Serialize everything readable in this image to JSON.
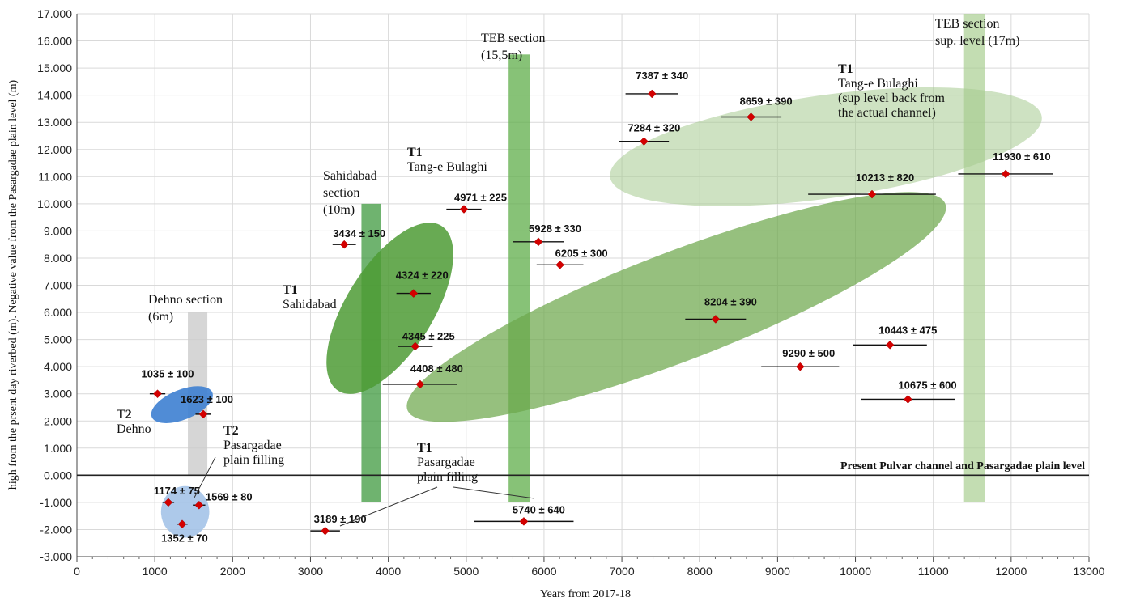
{
  "chart_data": {
    "type": "scatter",
    "xlabel": "Years from 2017-18",
    "ylabel": "high from the prsent day riverbed (m). Negative value from the Pasargadae plain level (m)",
    "xlim": [
      0,
      13000
    ],
    "ylim": [
      -3,
      17
    ],
    "x_ticks": [
      "0",
      "1000",
      "2000",
      "3000",
      "4000",
      "5000",
      "6000",
      "7000",
      "8000",
      "9000",
      "10000",
      "11000",
      "12000",
      "13000"
    ],
    "y_ticks": [
      "-3.000",
      "-2.000",
      "-1.000",
      "0.000",
      "1.000",
      "2.000",
      "3.000",
      "4.000",
      "5.000",
      "6.000",
      "7.000",
      "8.000",
      "9.000",
      "10.000",
      "11.000",
      "12.000",
      "13.000",
      "14.000",
      "15.000",
      "16.000",
      "17.000"
    ],
    "grid": true,
    "baseline": {
      "y": 0,
      "label": "Present Pulvar channel and Pasargadae plain level"
    },
    "sections": [
      {
        "x_center": 1550,
        "width": 250,
        "top": 6,
        "bottom": 0,
        "color": "#cccccc",
        "opacity": 0.8,
        "label_lines": [
          "Dehno section",
          "(6m)"
        ]
      },
      {
        "x_center": 3780,
        "width": 250,
        "top": 10,
        "bottom": -1,
        "color": "#3f9a3f",
        "opacity": 0.75,
        "label_lines": [
          "Sahidabad",
          "section",
          "(10m)"
        ]
      },
      {
        "x_center": 5680,
        "width": 270,
        "top": 15.5,
        "bottom": -1,
        "color": "#5fae4a",
        "opacity": 0.75,
        "label_lines": [
          "TEB section",
          "(15,5m)"
        ]
      },
      {
        "x_center": 11530,
        "width": 270,
        "top": 17,
        "bottom": -1,
        "color": "#a9cf92",
        "opacity": 0.7,
        "label_lines": [
          "TEB section",
          "sup. level (17m)"
        ]
      }
    ],
    "groups": [
      {
        "cx": 1350,
        "cy": 2.6,
        "rx": 420,
        "ry": 0.55,
        "rotation": 22,
        "fill": "#3d7fd1",
        "opacity": 0.9,
        "title": "T2",
        "subtitle_lines": [
          "Dehno"
        ]
      },
      {
        "cx": 1390,
        "cy": -1.35,
        "rx": 310,
        "ry": 0.95,
        "rotation": 0,
        "fill": "#9fbfe6",
        "opacity": 0.85,
        "title": "T2",
        "subtitle_lines": [
          "Pasargadae",
          "plain filling"
        ]
      },
      {
        "cx": 4020,
        "cy": 6.15,
        "rx": 1250,
        "ry": 1.6,
        "rotation": 58,
        "fill": "#4e9b35",
        "opacity": 0.85,
        "title": "T1",
        "subtitle_lines": [
          "Sahidabad"
        ]
      },
      {
        "cx": 7700,
        "cy": 6.2,
        "rx": 3700,
        "ry": 2.0,
        "rotation": 21,
        "fill": "#6ea74c",
        "opacity": 0.72,
        "title": "T1",
        "subtitle_lines": [
          "Tang-e Bulaghi"
        ]
      },
      {
        "cx": 9620,
        "cy": 12.1,
        "rx": 2800,
        "ry": 1.9,
        "rotation": 8,
        "fill": "#a6cb8f",
        "opacity": 0.55,
        "title": "T1",
        "subtitle_lines": [
          "Tang-e Bulaghi",
          "(sup level back from",
          "the actual channel)"
        ]
      },
      {
        "title": "T1",
        "subtitle_lines": [
          "Pasargadae",
          "plain filling"
        ]
      }
    ],
    "series": [
      {
        "points": [
          {
            "x": 1035,
            "y": 3.0,
            "err": 100,
            "label": "1035 ± 100"
          },
          {
            "x": 1623,
            "y": 2.25,
            "err": 100,
            "label": "1623 ± 100"
          },
          {
            "x": 1174,
            "y": -1.0,
            "err": 75,
            "label": "1174 ± 75"
          },
          {
            "x": 1569,
            "y": -1.1,
            "err": 80,
            "label": "1569 ± 80"
          },
          {
            "x": 1352,
            "y": -1.8,
            "err": 70,
            "label": "1352 ± 70"
          },
          {
            "x": 3189,
            "y": -2.05,
            "err": 190,
            "label": "3189 ± 190"
          },
          {
            "x": 5740,
            "y": -1.7,
            "err": 640,
            "label": "5740 ± 640"
          },
          {
            "x": 3434,
            "y": 8.5,
            "err": 150,
            "label": "3434 ± 150"
          },
          {
            "x": 4324,
            "y": 6.7,
            "err": 220,
            "label": "4324 ± 220"
          },
          {
            "x": 4345,
            "y": 4.75,
            "err": 225,
            "label": "4345 ± 225"
          },
          {
            "x": 4408,
            "y": 3.35,
            "err": 480,
            "label": "4408 ± 480"
          },
          {
            "x": 4971,
            "y": 9.8,
            "err": 225,
            "label": "4971 ± 225"
          },
          {
            "x": 5928,
            "y": 8.6,
            "err": 330,
            "label": "5928 ± 330"
          },
          {
            "x": 6205,
            "y": 7.75,
            "err": 300,
            "label": "6205 ± 300"
          },
          {
            "x": 8204,
            "y": 5.75,
            "err": 390,
            "label": "8204 ± 390"
          },
          {
            "x": 9290,
            "y": 4.0,
            "err": 500,
            "label": "9290 ± 500"
          },
          {
            "x": 10443,
            "y": 4.8,
            "err": 475,
            "label": "10443 ± 475"
          },
          {
            "x": 10675,
            "y": 2.8,
            "err": 600,
            "label": "10675 ± 600"
          },
          {
            "x": 7387,
            "y": 14.05,
            "err": 340,
            "label": "7387 ± 340"
          },
          {
            "x": 8659,
            "y": 13.2,
            "err": 390,
            "label": "8659 ± 390"
          },
          {
            "x": 7284,
            "y": 12.3,
            "err": 320,
            "label": "7284 ± 320"
          },
          {
            "x": 10213,
            "y": 10.35,
            "err": 820,
            "label": "10213 ± 820"
          },
          {
            "x": 11930,
            "y": 11.1,
            "err": 610,
            "label": "11930 ± 610"
          }
        ]
      }
    ]
  }
}
